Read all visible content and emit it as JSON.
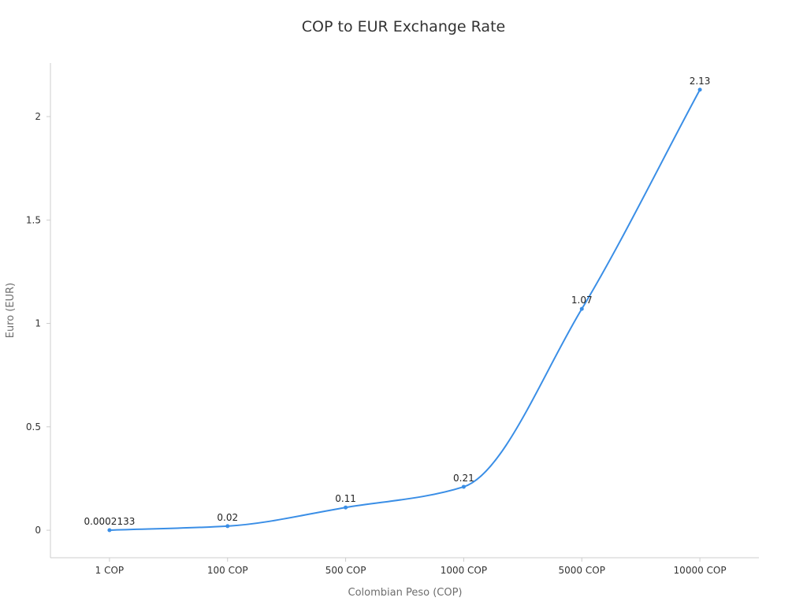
{
  "chart_data": {
    "type": "line",
    "title": "COP to EUR Exchange Rate",
    "xlabel": "Colombian Peso (COP)",
    "ylabel": "Euro (EUR)",
    "categories": [
      "1 COP",
      "100 COP",
      "500 COP",
      "1000 COP",
      "5000 COP",
      "10000 COP"
    ],
    "values": [
      0.0002133,
      0.02,
      0.11,
      0.21,
      1.07,
      2.13
    ],
    "data_labels": [
      "0.0002133",
      "0.02",
      "0.11",
      "0.21",
      "1.07",
      "2.13"
    ],
    "yticks": [
      0,
      0.5,
      1,
      1.5,
      2
    ],
    "ytick_labels": [
      "0",
      "0.5",
      "1",
      "1.5",
      "2"
    ],
    "ylim": [
      -0.133,
      2.259
    ],
    "smooth": true,
    "grid": false,
    "series_color": "#3a8ee6"
  }
}
